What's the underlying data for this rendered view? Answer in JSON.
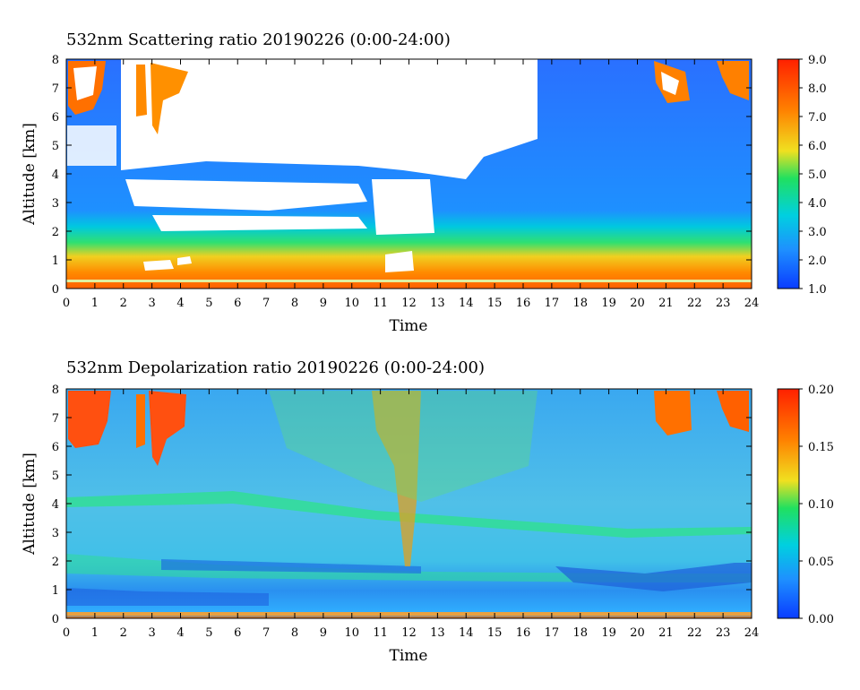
{
  "chart_data": [
    {
      "type": "heatmap",
      "title": "532nm Scattering ratio  20190226 (0:00-24:00)",
      "xlabel": "Time",
      "ylabel": "Altitude [km]",
      "xlim": [
        0,
        24
      ],
      "ylim": [
        0,
        8
      ],
      "x_ticks": [
        "0",
        "1",
        "2",
        "3",
        "4",
        "5",
        "6",
        "7",
        "8",
        "9",
        "10",
        "11",
        "12",
        "13",
        "14",
        "15",
        "16",
        "17",
        "18",
        "19",
        "20",
        "21",
        "22",
        "23",
        "24"
      ],
      "y_ticks": [
        "0",
        "1",
        "2",
        "3",
        "4",
        "5",
        "6",
        "7",
        "8"
      ],
      "colorbar": {
        "range": [
          1.0,
          9.0
        ],
        "ticks": [
          "1.0",
          "2.0",
          "3.0",
          "4.0",
          "5.0",
          "6.0",
          "7.0",
          "8.0",
          "9.0"
        ],
        "colors": [
          "#0a3cff",
          "#1e90ff",
          "#00d0e0",
          "#20e060",
          "#f0e020",
          "#ff8000",
          "#ff2000"
        ]
      }
    },
    {
      "type": "heatmap",
      "title": "532nm Depolarization ratio  20190226 (0:00-24:00)",
      "xlabel": "Time",
      "ylabel": "Altitude [km]",
      "xlim": [
        0,
        24
      ],
      "ylim": [
        0,
        8
      ],
      "x_ticks": [
        "0",
        "1",
        "2",
        "3",
        "4",
        "5",
        "6",
        "7",
        "8",
        "9",
        "10",
        "11",
        "12",
        "13",
        "14",
        "15",
        "16",
        "17",
        "18",
        "19",
        "20",
        "21",
        "22",
        "23",
        "24"
      ],
      "y_ticks": [
        "0",
        "1",
        "2",
        "3",
        "4",
        "5",
        "6",
        "7",
        "8"
      ],
      "colorbar": {
        "range": [
          0.0,
          0.2
        ],
        "ticks": [
          "0.00",
          "0.05",
          "0.10",
          "0.15",
          "0.20"
        ],
        "colors": [
          "#0a3cff",
          "#1e90ff",
          "#00d0e0",
          "#20e060",
          "#f0e020",
          "#ff8000",
          "#ff2000"
        ]
      }
    }
  ]
}
